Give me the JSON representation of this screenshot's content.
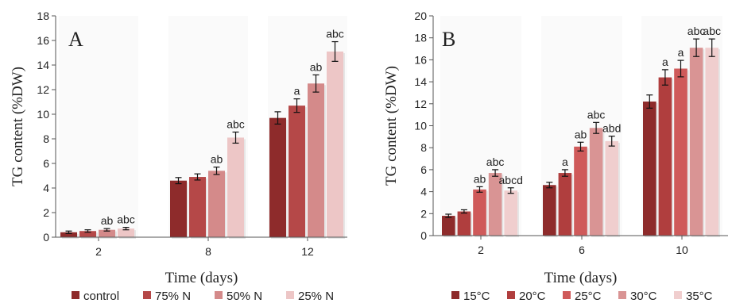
{
  "chart_data": [
    {
      "type": "bar",
      "panel": "A",
      "ylabel": "TG content (%DW)",
      "xlabel": "Time (days)",
      "ylim": [
        0,
        18
      ],
      "yticks": [
        0,
        2,
        4,
        6,
        8,
        10,
        12,
        14,
        16,
        18
      ],
      "categories": [
        "2",
        "8",
        "12"
      ],
      "error_bars": true,
      "legend_position": "bottom",
      "series": [
        {
          "name": "control",
          "color": "#8e2b2b",
          "values": [
            0.4,
            4.6,
            9.7
          ],
          "errors": [
            0.1,
            0.25,
            0.5
          ],
          "labels": [
            "",
            "",
            ""
          ]
        },
        {
          "name": "75% N",
          "color": "#b54848",
          "values": [
            0.5,
            4.9,
            10.7
          ],
          "errors": [
            0.1,
            0.25,
            0.55
          ],
          "labels": [
            "",
            "",
            "a"
          ]
        },
        {
          "name": "50% N",
          "color": "#d48a8a",
          "values": [
            0.6,
            5.4,
            12.5
          ],
          "errors": [
            0.1,
            0.3,
            0.7
          ],
          "labels": [
            "ab",
            "ab",
            "ab"
          ]
        },
        {
          "name": "25% N",
          "color": "#edc6c6",
          "values": [
            0.7,
            8.1,
            15.1
          ],
          "errors": [
            0.1,
            0.45,
            0.8
          ],
          "labels": [
            "abc",
            "abc",
            "abc"
          ]
        }
      ]
    },
    {
      "type": "bar",
      "panel": "B",
      "ylabel": "TG content (%DW)",
      "xlabel": "Time (days)",
      "ylim": [
        0,
        20
      ],
      "yticks": [
        0,
        2,
        4,
        6,
        8,
        10,
        12,
        14,
        16,
        18,
        20
      ],
      "categories": [
        "2",
        "6",
        "10"
      ],
      "error_bars": true,
      "legend_position": "bottom",
      "series": [
        {
          "name": "15°C",
          "color": "#8e2b2b",
          "values": [
            1.8,
            4.6,
            12.2
          ],
          "errors": [
            0.15,
            0.25,
            0.6
          ],
          "labels": [
            "",
            "",
            ""
          ]
        },
        {
          "name": "20°C",
          "color": "#b03e3e",
          "values": [
            2.2,
            5.7,
            14.4
          ],
          "errors": [
            0.15,
            0.3,
            0.7
          ],
          "labels": [
            "",
            "a",
            "a"
          ]
        },
        {
          "name": "25°C",
          "color": "#cf5a5a",
          "values": [
            4.2,
            8.1,
            15.2
          ],
          "errors": [
            0.25,
            0.4,
            0.75
          ],
          "labels": [
            "ab",
            "ab",
            "a"
          ]
        },
        {
          "name": "30°C",
          "color": "#d99494",
          "values": [
            5.7,
            9.8,
            17.1
          ],
          "errors": [
            0.3,
            0.5,
            0.8
          ],
          "labels": [
            "abc",
            "abc",
            "abc"
          ]
        },
        {
          "name": "35°C",
          "color": "#f0cece",
          "values": [
            4.1,
            8.6,
            17.1
          ],
          "errors": [
            0.25,
            0.45,
            0.8
          ],
          "labels": [
            "abcd",
            "abd",
            "abc"
          ]
        }
      ]
    }
  ]
}
